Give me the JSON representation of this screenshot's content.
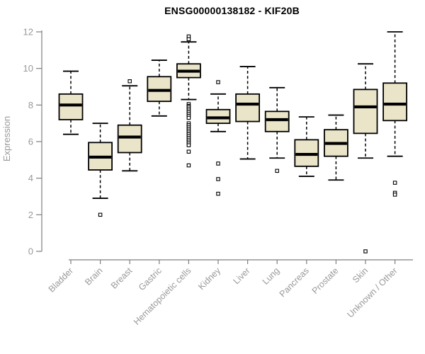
{
  "colors": {
    "box_fill": "#EAE4C9",
    "box_stroke": "#000000",
    "axis_line": "#7F7F7F",
    "axis_text": "#999999",
    "title_color": "#000000",
    "background": "#FFFFFF"
  },
  "chart_data": {
    "type": "boxplot",
    "title": "ENSG00000138182 - KIF20B",
    "xlabel": "",
    "ylabel": "Expression",
    "ylim": [
      0,
      12
    ],
    "yticks": [
      0,
      2,
      4,
      6,
      8,
      10,
      12
    ],
    "grid": false,
    "legend": "none",
    "categories": [
      "Bladder",
      "Brain",
      "Breast",
      "Gastric",
      "Hematopoietic cells",
      "Kidney",
      "Liver",
      "Lung",
      "Pancreas",
      "Prostate",
      "Skin",
      "Unknown / Other"
    ],
    "series": [
      {
        "name": "Bladder",
        "whisker_low": 6.4,
        "q1": 7.2,
        "median": 8.0,
        "q3": 8.6,
        "whisker_high": 9.85,
        "outliers": []
      },
      {
        "name": "Brain",
        "whisker_low": 2.9,
        "q1": 4.45,
        "median": 5.15,
        "q3": 5.95,
        "whisker_high": 7.0,
        "outliers": [
          2.0
        ]
      },
      {
        "name": "Breast",
        "whisker_low": 4.4,
        "q1": 5.4,
        "median": 6.25,
        "q3": 6.9,
        "whisker_high": 9.05,
        "outliers": [
          9.3
        ]
      },
      {
        "name": "Gastric",
        "whisker_low": 7.4,
        "q1": 8.2,
        "median": 8.8,
        "q3": 9.55,
        "whisker_high": 10.45,
        "outliers": []
      },
      {
        "name": "Hematopoietic cells",
        "whisker_low": 8.3,
        "q1": 9.5,
        "median": 9.85,
        "q3": 10.25,
        "whisker_high": 11.45,
        "outliers": [
          11.75,
          11.6,
          8.05,
          7.95,
          7.9,
          7.8,
          7.7,
          7.6,
          7.5,
          7.4,
          7.3,
          7.0,
          6.9,
          6.8,
          6.7,
          6.6,
          6.5,
          6.4,
          6.3,
          6.2,
          6.1,
          6.0,
          5.9,
          5.8,
          5.45,
          4.7
        ]
      },
      {
        "name": "Kidney",
        "whisker_low": 6.55,
        "q1": 7.0,
        "median": 7.3,
        "q3": 7.75,
        "whisker_high": 8.6,
        "outliers": [
          9.25,
          4.8,
          3.95,
          3.15
        ]
      },
      {
        "name": "Liver",
        "whisker_low": 5.05,
        "q1": 7.1,
        "median": 8.05,
        "q3": 8.6,
        "whisker_high": 10.1,
        "outliers": []
      },
      {
        "name": "Lung",
        "whisker_low": 5.1,
        "q1": 6.55,
        "median": 7.2,
        "q3": 7.65,
        "whisker_high": 8.95,
        "outliers": [
          4.4
        ]
      },
      {
        "name": "Pancreas",
        "whisker_low": 4.1,
        "q1": 4.65,
        "median": 5.3,
        "q3": 6.1,
        "whisker_high": 7.35,
        "outliers": []
      },
      {
        "name": "Prostate",
        "whisker_low": 3.9,
        "q1": 5.2,
        "median": 5.9,
        "q3": 6.65,
        "whisker_high": 7.45,
        "outliers": []
      },
      {
        "name": "Skin",
        "whisker_low": 5.1,
        "q1": 6.45,
        "median": 7.9,
        "q3": 8.85,
        "whisker_high": 10.25,
        "outliers": [
          0.0
        ]
      },
      {
        "name": "Unknown / Other",
        "whisker_low": 5.2,
        "q1": 7.15,
        "median": 8.05,
        "q3": 9.2,
        "whisker_high": 12.0,
        "outliers": [
          3.75,
          3.2,
          3.1
        ]
      }
    ]
  }
}
